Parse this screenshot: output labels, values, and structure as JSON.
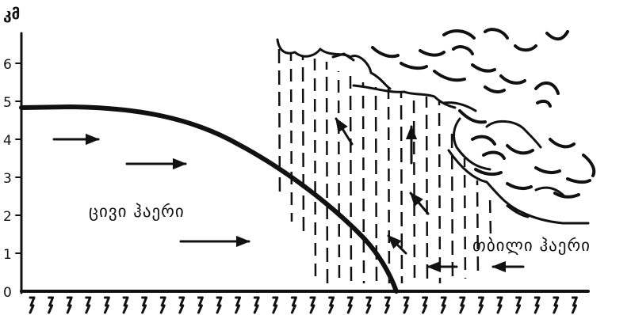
{
  "axis": {
    "unit": "კმ",
    "ticks": [
      "0",
      "1",
      "2",
      "3",
      "4",
      "5",
      "6"
    ]
  },
  "labels": {
    "cold_air": "ცივი ჰაერი",
    "warm_air": "თბილი ჰაერი"
  },
  "colors": {
    "ink": "#111111",
    "background": "#ffffff"
  }
}
